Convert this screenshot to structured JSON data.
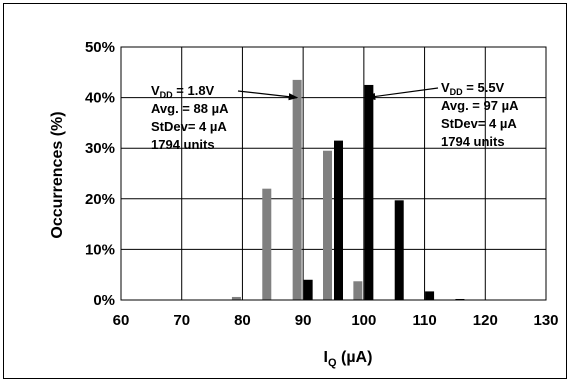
{
  "chart_data": {
    "type": "bar",
    "xlabel_main": "I",
    "xlabel_sub": "Q",
    "xlabel_rest": " (µA)",
    "ylabel": "Occurrences (%)",
    "xlim": [
      60,
      130
    ],
    "ylim": [
      0,
      50
    ],
    "x_ticks": [
      "60",
      "70",
      "80",
      "90",
      "100",
      "110",
      "120",
      "130"
    ],
    "y_ticks": [
      "0%",
      "10%",
      "20%",
      "30%",
      "40%",
      "50%"
    ],
    "grid": true,
    "series": [
      {
        "color": "#808080",
        "x": [
          80,
          85,
          90,
          95,
          100
        ],
        "values": [
          0.6,
          22,
          43.5,
          29.5,
          3.7
        ]
      },
      {
        "color": "#000000",
        "x": [
          90,
          95,
          100,
          105,
          110,
          115
        ],
        "values": [
          4,
          31.5,
          42.5,
          19.7,
          1.7,
          0.2
        ]
      }
    ],
    "annotations": [
      {
        "lines": [
          {
            "main": "V",
            "sub": "DD",
            "rest": " = 1.8V"
          },
          {
            "main": "Avg. = 88 µA"
          },
          {
            "main": "StDev= 4 µA"
          },
          {
            "main": "1794 units"
          }
        ],
        "arrow_to": {
          "x": 89,
          "y": 40
        }
      },
      {
        "lines": [
          {
            "main": "V",
            "sub": "DD",
            "rest": " = 5.5V"
          },
          {
            "main": "Avg. = 97 µA"
          },
          {
            "main": "StDev= 4 µA"
          },
          {
            "main": "1794 units"
          }
        ],
        "arrow_to": {
          "x": 100.5,
          "y": 40
        }
      }
    ]
  }
}
